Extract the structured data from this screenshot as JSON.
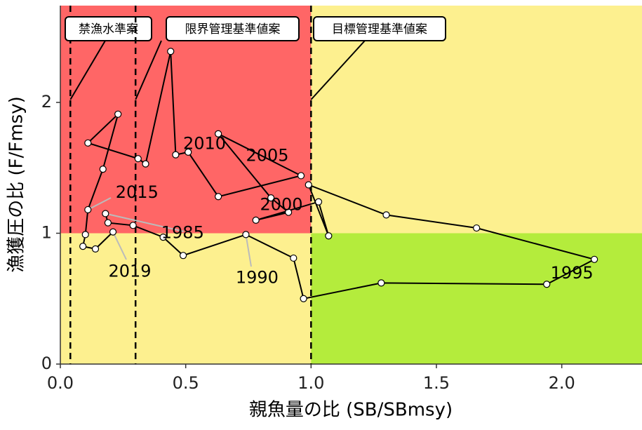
{
  "chart_data": {
    "type": "trajectory",
    "x_label": "親魚量の比 (SB/SBmsy)",
    "y_label": "漁獲圧の比 (F/Fmsy)",
    "xlim": [
      0,
      2.32
    ],
    "ylim": [
      0,
      2.74
    ],
    "xticks": [
      {
        "value": 0,
        "label": "0.0"
      },
      0.5,
      {
        "value": 1,
        "label": "1.0"
      },
      1.5,
      {
        "value": 2,
        "label": "2.0"
      }
    ],
    "yticks": [
      0,
      1,
      2
    ],
    "zone_colors": {
      "red": "#ff6666",
      "yellow": "#fdf08f",
      "green": "#b4ec3c"
    },
    "y_boundary": 1,
    "reference_lines": [
      {
        "x": 0.04,
        "label": "禁漁水準案"
      },
      {
        "x": 0.3,
        "label": "限界管理基準値案"
      },
      {
        "x": 1,
        "label": "目標管理基準値案"
      }
    ],
    "series": [
      {
        "color": "#000000",
        "x": [
          0.18,
          0.19,
          0.29,
          0.41,
          0.49,
          0.74,
          0.93,
          0.97,
          1.28,
          1.94,
          2.13,
          1.66,
          1.3,
          0.99,
          1.07,
          1.03,
          0.78,
          0.91,
          0.84,
          0.63,
          0.96,
          0.63,
          0.51,
          0.46,
          0.44,
          0.34,
          0.31,
          0.11,
          0.23,
          0.17,
          0.11,
          0.1,
          0.09,
          0.14,
          0.21
        ],
        "values": [
          1.15,
          1.08,
          1.06,
          0.97,
          0.83,
          0.99,
          0.81,
          0.5,
          0.62,
          0.61,
          0.8,
          1.04,
          1.14,
          1.37,
          0.98,
          1.24,
          1.1,
          1.16,
          1.27,
          1.76,
          1.44,
          1.28,
          1.62,
          1.6,
          2.39,
          1.53,
          1.57,
          1.69,
          1.91,
          1.49,
          1.18,
          0.99,
          0.9,
          0.88,
          1.01
        ],
        "point_labels": [
          "1985",
          null,
          null,
          null,
          null,
          "1990",
          null,
          null,
          null,
          null,
          "1995",
          null,
          null,
          null,
          null,
          "2000",
          null,
          null,
          null,
          null,
          "2005",
          null,
          null,
          null,
          null,
          "2010",
          null,
          null,
          null,
          null,
          "2015",
          null,
          null,
          null,
          "2019"
        ]
      }
    ]
  }
}
